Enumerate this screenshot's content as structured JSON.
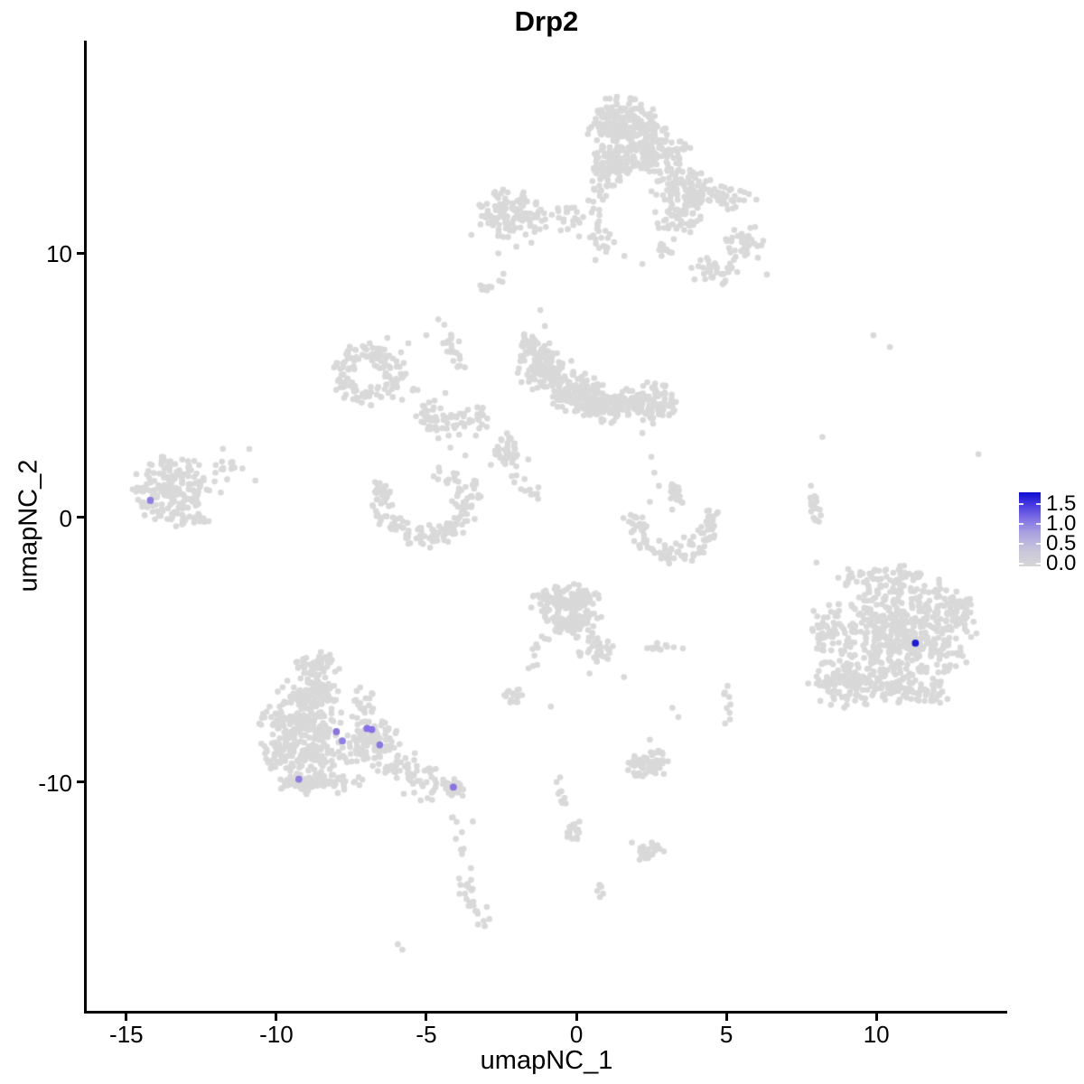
{
  "title": "Drp2",
  "axes": {
    "x": {
      "label": "umapNC_1",
      "ticks": [
        "-15",
        "-10",
        "-5",
        "0",
        "5",
        "10"
      ],
      "tick_values": [
        -15,
        -10,
        -5,
        0,
        5,
        10
      ],
      "range": [
        -16.35,
        14.36
      ]
    },
    "y": {
      "label": "umapNC_2",
      "ticks": [
        "10",
        "0",
        "-10"
      ],
      "tick_values": [
        10,
        0,
        -10
      ],
      "range": [
        -18.7,
        18.05
      ]
    }
  },
  "legend": {
    "labels": [
      "1.5",
      "1.0",
      "0.5",
      "0.0"
    ],
    "values": [
      1.5,
      1.0,
      0.5,
      0.0
    ],
    "gradient_top": "#0d0dd2",
    "gradient_bottom": "#d6d6d6"
  },
  "colors": {
    "background": "#ffffff",
    "axis": "#000000",
    "base_point": "#d9d9d9",
    "low_expr_point": "#8c76e0",
    "high_expr_point": "#1c1cce"
  },
  "chart_data": {
    "type": "scatter",
    "title": "Drp2",
    "xlabel": "umapNC_1",
    "ylabel": "umapNC_2",
    "xlim": [
      -16.35,
      14.36
    ],
    "ylim": [
      -18.7,
      18.05
    ],
    "grid": false,
    "legend_position": "right",
    "point_radius_px": 3.3,
    "highlight_radius_px": 3.9,
    "clusters": [
      {
        "name": "top-main-1",
        "cx": 1.5,
        "cy": 15.0,
        "rx": 1.35,
        "ry": 0.95,
        "n": 170
      },
      {
        "name": "top-main-2",
        "cx": 2.3,
        "cy": 13.95,
        "rx": 1.5,
        "ry": 1.0,
        "n": 170
      },
      {
        "name": "top-main-3",
        "cx": 1.05,
        "cy": 13.3,
        "rx": 0.85,
        "ry": 0.75,
        "n": 70
      },
      {
        "name": "top-right-spread",
        "cx": 3.5,
        "cy": 12.7,
        "rx": 1.1,
        "ry": 0.85,
        "n": 70
      },
      {
        "name": "top-right-arm",
        "cx": 4.3,
        "cy": 12.15,
        "rx": 1.8,
        "ry": 0.6,
        "n": 80
      },
      {
        "name": "top-arm-tip",
        "cx": 5.5,
        "cy": 10.3,
        "rx": 0.85,
        "ry": 0.95,
        "n": 40
      },
      {
        "name": "top-arm-low",
        "cx": 4.6,
        "cy": 9.3,
        "rx": 0.95,
        "ry": 0.7,
        "n": 34
      },
      {
        "name": "top-small-clump",
        "cx": 3.05,
        "cy": 10.2,
        "rx": 0.45,
        "ry": 0.4,
        "n": 14
      },
      {
        "name": "top-mid-scatter",
        "cx": 3.4,
        "cy": 11.4,
        "rx": 1.0,
        "ry": 0.85,
        "n": 45
      },
      {
        "name": "top-left-blob",
        "cx": -2.15,
        "cy": 11.5,
        "rx": 1.2,
        "ry": 1.0,
        "n": 120
      },
      {
        "name": "below-junction-scatter",
        "cx": 0.85,
        "cy": 10.3,
        "rx": 0.45,
        "ry": 0.9,
        "n": 16
      },
      {
        "name": "mid-top-spur",
        "cx": -1.5,
        "cy": 6.5,
        "rx": 0.55,
        "ry": 0.5,
        "n": 35
      },
      {
        "name": "mid-main-1",
        "cx": -1.05,
        "cy": 5.6,
        "rx": 0.95,
        "ry": 0.9,
        "n": 130
      },
      {
        "name": "mid-main-2",
        "cx": 0.0,
        "cy": 4.65,
        "rx": 1.05,
        "ry": 0.85,
        "n": 130
      },
      {
        "name": "mid-main-3",
        "cx": 0.95,
        "cy": 4.15,
        "rx": 0.9,
        "ry": 0.6,
        "n": 80
      },
      {
        "name": "mid-band",
        "cx": 1.7,
        "cy": 4.35,
        "rx": 0.85,
        "ry": 0.6,
        "n": 60
      },
      {
        "name": "mid-right-end",
        "cx": 2.55,
        "cy": 4.35,
        "rx": 0.8,
        "ry": 0.85,
        "n": 90
      },
      {
        "name": "mid-left-ring",
        "type": "ring",
        "cx": -7.0,
        "cy": 5.4,
        "rx": 1.1,
        "ry": 1.2,
        "inner": 0.45,
        "n": 130
      },
      {
        "name": "central-clump",
        "cx": -2.3,
        "cy": 2.6,
        "rx": 0.5,
        "ry": 0.6,
        "n": 40
      },
      {
        "name": "crescent-left",
        "type": "arc",
        "cx": -5.05,
        "cy": 0.8,
        "r": 1.5,
        "th": 0.55,
        "a1": 160,
        "a2": 380,
        "n": 150
      },
      {
        "name": "crescent-left-top-scatter",
        "cx": -4.35,
        "cy": 1.55,
        "rx": 0.55,
        "ry": 0.45,
        "n": 12
      },
      {
        "name": "left-cluster",
        "cx": -13.45,
        "cy": 1.0,
        "rx": 1.35,
        "ry": 1.5,
        "n": 190
      },
      {
        "name": "left-cluster-right-scatter",
        "cx": -11.7,
        "cy": 1.9,
        "rx": 0.65,
        "ry": 0.8,
        "n": 16
      },
      {
        "name": "left-cluster-below",
        "cx": -12.6,
        "cy": -0.05,
        "rx": 0.55,
        "ry": 0.3,
        "n": 10
      },
      {
        "name": "crescent-right",
        "type": "arc",
        "cx": 3.2,
        "cy": -0.05,
        "r": 1.28,
        "th": 0.5,
        "a1": 165,
        "a2": 375,
        "n": 100
      },
      {
        "name": "crescent-right-top-clump",
        "cx": 3.3,
        "cy": 0.9,
        "rx": 0.3,
        "ry": 0.7,
        "n": 22
      },
      {
        "name": "right-big-core",
        "cx": 10.9,
        "cy": -4.3,
        "rx": 2.45,
        "ry": 2.3,
        "n": 500
      },
      {
        "name": "right-big-left-lobe",
        "cx": 9.2,
        "cy": -6.2,
        "rx": 1.5,
        "ry": 1.05,
        "n": 130
      },
      {
        "name": "right-big-bottom",
        "cx": 11.0,
        "cy": -6.6,
        "rx": 1.7,
        "ry": 0.7,
        "n": 80
      },
      {
        "name": "right-big-top-fringe",
        "cx": 10.4,
        "cy": -2.3,
        "rx": 1.7,
        "ry": 0.6,
        "n": 60
      },
      {
        "name": "right-big-left-edge",
        "cx": 8.4,
        "cy": -4.4,
        "rx": 0.8,
        "ry": 1.2,
        "n": 40
      },
      {
        "name": "right-big-right-bulge",
        "cx": 12.6,
        "cy": -3.4,
        "rx": 0.8,
        "ry": 0.9,
        "n": 50
      },
      {
        "name": "bl-apex",
        "cx": -8.6,
        "cy": -5.6,
        "rx": 0.8,
        "ry": 0.55,
        "n": 55
      },
      {
        "name": "bl-2",
        "cx": -8.85,
        "cy": -6.6,
        "rx": 1.15,
        "ry": 0.6,
        "n": 95
      },
      {
        "name": "bl-3",
        "cx": -9.2,
        "cy": -7.7,
        "rx": 1.55,
        "ry": 0.8,
        "n": 140
      },
      {
        "name": "bl-4",
        "cx": -9.0,
        "cy": -8.9,
        "rx": 1.9,
        "ry": 0.8,
        "n": 160
      },
      {
        "name": "bl-5",
        "cx": -8.7,
        "cy": -9.95,
        "rx": 1.6,
        "ry": 0.55,
        "n": 95
      },
      {
        "name": "bl-right-bulge",
        "cx": -6.85,
        "cy": -8.45,
        "rx": 1.05,
        "ry": 0.95,
        "n": 95
      },
      {
        "name": "bl-right-scatter",
        "cx": -7.15,
        "cy": -7.1,
        "rx": 0.55,
        "ry": 0.75,
        "n": 22
      },
      {
        "name": "bl-tail-blob",
        "cx": -4.1,
        "cy": -10.25,
        "rx": 0.5,
        "ry": 0.45,
        "n": 30
      },
      {
        "name": "bm-top",
        "cx": -0.35,
        "cy": -3.1,
        "rx": 1.35,
        "ry": 0.6,
        "n": 130
      },
      {
        "name": "bm-mid",
        "cx": -0.1,
        "cy": -3.95,
        "rx": 1.15,
        "ry": 0.5,
        "n": 90
      },
      {
        "name": "bm-below-blob",
        "cx": -2.1,
        "cy": -6.75,
        "rx": 0.4,
        "ry": 0.4,
        "n": 15
      },
      {
        "name": "bm-tail-end-blob",
        "cx": -0.1,
        "cy": -11.85,
        "rx": 0.4,
        "ry": 0.5,
        "n": 16
      },
      {
        "name": "bc-mini-bar",
        "cx": 2.8,
        "cy": -4.9,
        "rx": 0.6,
        "ry": 0.2,
        "n": 12
      },
      {
        "name": "bc-angular-blob",
        "cx": 2.5,
        "cy": -12.7,
        "rx": 0.5,
        "ry": 0.42,
        "n": 26
      },
      {
        "name": "bc-blob",
        "cx": 2.35,
        "cy": -9.3,
        "rx": 0.85,
        "ry": 0.55,
        "n": 65
      },
      {
        "name": "bc-tiny",
        "cx": 0.75,
        "cy": -14.1,
        "rx": 0.18,
        "ry": 0.3,
        "n": 6
      }
    ],
    "strands": [
      {
        "name": "topleft-to-main",
        "pts": [
          [
            -1.0,
            11.5
          ],
          [
            0.5,
            11.2
          ]
        ],
        "w": 0.28,
        "n": 26
      },
      {
        "name": "topleft-dash",
        "pts": [
          [
            -3.05,
            8.55
          ],
          [
            -2.45,
            9.15
          ]
        ],
        "w": 0.12,
        "n": 9
      },
      {
        "name": "top-down-strand",
        "pts": [
          [
            1.1,
            13.0
          ],
          [
            0.75,
            11.9
          ],
          [
            0.6,
            11.15
          ]
        ],
        "w": 0.18,
        "n": 22
      },
      {
        "name": "ring-to-mid",
        "pts": [
          [
            -6.1,
            5.8
          ],
          [
            -4.7,
            4.0
          ]
        ],
        "w": 0.3,
        "n": 20
      },
      {
        "name": "mid-vert-strand",
        "pts": [
          [
            -4.25,
            6.95
          ],
          [
            -3.85,
            5.3
          ]
        ],
        "w": 0.16,
        "n": 20
      },
      {
        "name": "mid-chain",
        "pts": [
          [
            -5.2,
            3.65
          ],
          [
            -4.3,
            3.55
          ],
          [
            -3.4,
            3.85
          ],
          [
            -2.9,
            3.9
          ]
        ],
        "w": 0.27,
        "n": 60
      },
      {
        "name": "clump-down-diag",
        "pts": [
          [
            -2.35,
            1.75
          ],
          [
            -1.35,
            0.85
          ]
        ],
        "w": 0.22,
        "n": 12
      },
      {
        "name": "right-strand",
        "pts": [
          [
            8.1,
            1.15
          ],
          [
            7.85,
            0.45
          ],
          [
            8.05,
            -0.3
          ]
        ],
        "w": 0.14,
        "n": 18
      },
      {
        "name": "bl-tail",
        "pts": [
          [
            -6.4,
            -9.2
          ],
          [
            -5.4,
            -9.8
          ],
          [
            -4.4,
            -10.2
          ]
        ],
        "w": 0.3,
        "n": 65
      },
      {
        "name": "bm-arm",
        "pts": [
          [
            0.3,
            -4.4
          ],
          [
            1.2,
            -5.6
          ]
        ],
        "w": 0.27,
        "n": 45
      },
      {
        "name": "bm-left-strand",
        "pts": [
          [
            -1.15,
            -4.75
          ],
          [
            -1.7,
            -6.1
          ]
        ],
        "w": 0.12,
        "n": 10
      },
      {
        "name": "bm-down-strand",
        "pts": [
          [
            -0.65,
            -9.75
          ],
          [
            -0.35,
            -10.9
          ]
        ],
        "w": 0.12,
        "n": 10
      },
      {
        "name": "bc-x5-strand",
        "pts": [
          [
            4.95,
            -6.4
          ],
          [
            5.1,
            -7.75
          ]
        ],
        "w": 0.1,
        "n": 9
      },
      {
        "name": "bl-below-tail-strand",
        "pts": [
          [
            -3.98,
            -11.3
          ],
          [
            -3.67,
            -13.1
          ]
        ],
        "w": 0.08,
        "n": 7
      },
      {
        "name": "bl-long-tail",
        "pts": [
          [
            -3.75,
            -13.6
          ],
          [
            -3.45,
            -14.4
          ],
          [
            -3.1,
            -15.35
          ]
        ],
        "w": 0.17,
        "n": 26
      }
    ],
    "dots": [
      [
        -2.6,
        10.0
      ],
      [
        -2.0,
        10.25
      ],
      [
        -3.5,
        10.7
      ],
      [
        -1.5,
        10.4
      ],
      [
        -1.2,
        7.85
      ],
      [
        -1.05,
        7.25
      ],
      [
        -0.9,
        6.6
      ],
      [
        1.6,
        9.9
      ],
      [
        2.2,
        9.6
      ],
      [
        6.35,
        9.2
      ],
      [
        -5.6,
        6.6
      ],
      [
        -5.0,
        6.9
      ],
      [
        -6.3,
        6.8
      ],
      [
        -4.6,
        7.5
      ],
      [
        -4.4,
        7.3
      ],
      [
        -3.35,
        3.1
      ],
      [
        -2.85,
        2.0
      ],
      [
        -3.7,
        2.35
      ],
      [
        -4.2,
        2.65
      ],
      [
        -1.6,
        2.2
      ],
      [
        -2.0,
        1.6
      ],
      [
        -4.6,
        3.0
      ],
      [
        -10.9,
        2.6
      ],
      [
        -11.85,
        0.95
      ],
      [
        -10.7,
        1.4
      ],
      [
        2.5,
        2.3
      ],
      [
        2.6,
        1.7
      ],
      [
        2.75,
        1.2
      ],
      [
        2.45,
        0.6
      ],
      [
        2.2,
        3.2
      ],
      [
        8.0,
        -1.7
      ],
      [
        8.2,
        3.05
      ],
      [
        9.9,
        6.9
      ],
      [
        10.45,
        6.45
      ],
      [
        13.4,
        2.4
      ],
      [
        -4.15,
        -11.35
      ],
      [
        -3.45,
        -11.5
      ],
      [
        -0.85,
        -7.15
      ],
      [
        3.55,
        -4.95
      ],
      [
        3.2,
        -7.2
      ],
      [
        3.4,
        -7.55
      ],
      [
        1.85,
        -12.3
      ],
      [
        2.45,
        -8.4
      ],
      [
        -5.95,
        -16.15
      ],
      [
        -5.8,
        -16.35
      ]
    ],
    "highlight_points": [
      {
        "x": -14.2,
        "y": 0.65,
        "color": "#8f7ce0",
        "value": 0.5
      },
      {
        "x": -8.0,
        "y": -8.1,
        "color": "#8a73de",
        "value": 0.5
      },
      {
        "x": -7.8,
        "y": -8.45,
        "color": "#9180e2",
        "value": 0.4
      },
      {
        "x": -6.98,
        "y": -7.98,
        "color": "#8a70e8",
        "value": 0.6
      },
      {
        "x": -6.82,
        "y": -8.02,
        "color": "#8a70e8",
        "value": 0.6
      },
      {
        "x": -6.55,
        "y": -8.6,
        "color": "#8d77e0",
        "value": 0.5
      },
      {
        "x": -9.25,
        "y": -9.9,
        "color": "#8f7ae0",
        "value": 0.5
      },
      {
        "x": -4.1,
        "y": -10.2,
        "color": "#8b72de",
        "value": 0.5
      },
      {
        "x": 11.3,
        "y": -4.75,
        "color": "#1c1cce",
        "value": 1.6
      }
    ]
  }
}
